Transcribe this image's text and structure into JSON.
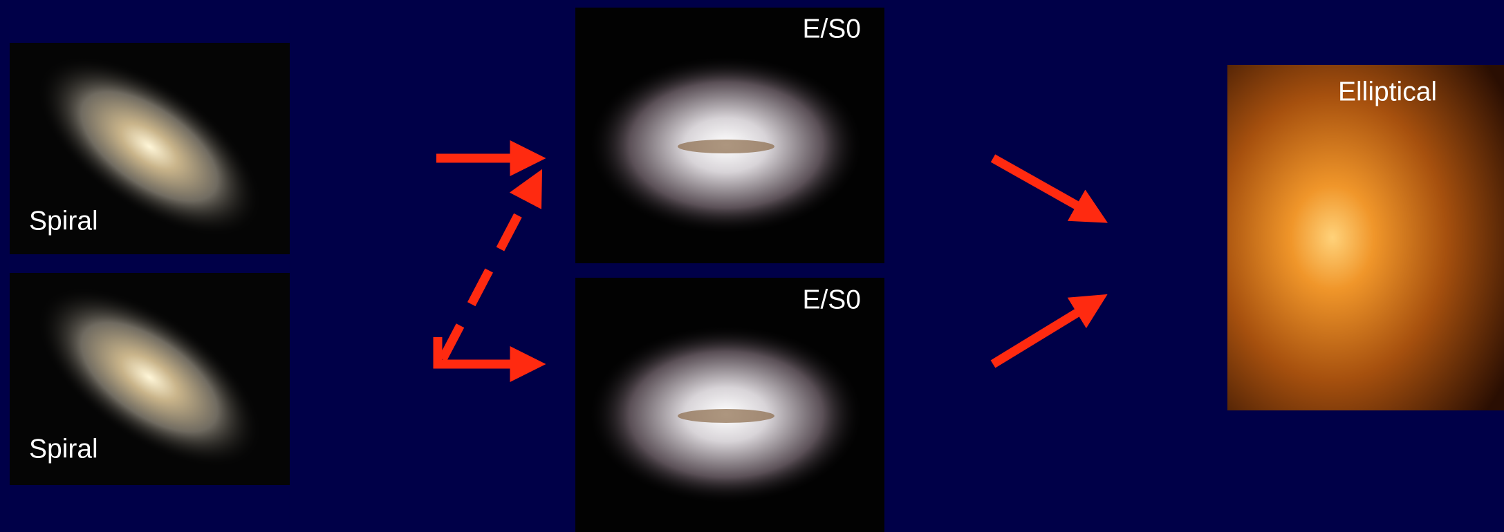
{
  "nodes": [
    {
      "label": "Spiral"
    },
    {
      "label": "Spiral"
    },
    {
      "label": "E/S0"
    },
    {
      "label": "E/S0"
    },
    {
      "label": "Elliptical"
    }
  ]
}
